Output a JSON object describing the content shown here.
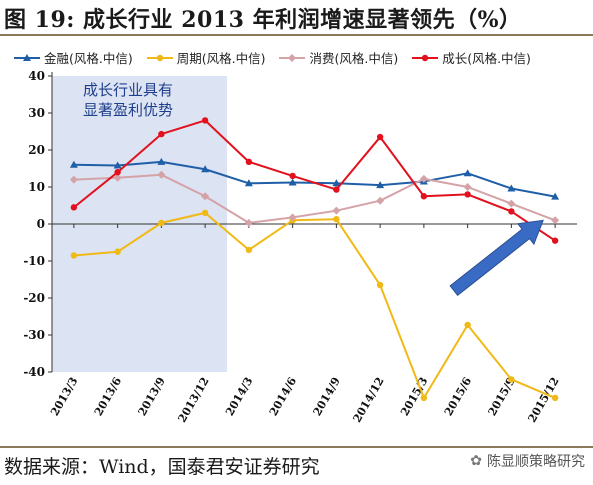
{
  "title": "图 19: 成长行业 2013 年利润增速显著领先（%）",
  "source": "数据来源：Wind，国泰君安证券研究",
  "watermark": "陈显顺策略研究",
  "watermark_icon": "wechat-icon",
  "highlight_text": [
    "成长行业具有",
    "显著盈利优势"
  ],
  "chart_data": {
    "type": "line",
    "categories": [
      "2013/3",
      "2013/6",
      "2013/9",
      "2013/12",
      "2014/3",
      "2014/6",
      "2014/9",
      "2014/12",
      "2015/3",
      "2015/6",
      "2015/9",
      "2015/12"
    ],
    "ylim": [
      -40,
      40
    ],
    "yticks": [
      -40,
      -30,
      -20,
      -10,
      0,
      10,
      20,
      30,
      40
    ],
    "grid": false,
    "legend": "top",
    "shaded_region": {
      "from": "2013/3",
      "to": "2013/12",
      "color": "#dce3f2"
    },
    "annotation_arrow": {
      "color": "#3a6bc4",
      "from": {
        "x": "2015/3",
        "y": -18
      },
      "to": {
        "x": "2015/12",
        "y": 1
      }
    },
    "series": [
      {
        "name": "金融(风格.中信)",
        "color": "#1f5fa8",
        "marker": "triangle",
        "values": [
          16.0,
          15.8,
          16.8,
          14.8,
          11.0,
          11.2,
          11.0,
          10.5,
          11.5,
          13.7,
          9.6,
          7.4
        ]
      },
      {
        "name": "周期(风格.中信)",
        "color": "#f0b915",
        "marker": "circle",
        "values": [
          -8.5,
          -7.5,
          0.3,
          3.0,
          -7.0,
          1.0,
          1.3,
          -16.5,
          -47.0,
          -27.3,
          -42.0,
          -47.0
        ]
      },
      {
        "name": "消费(风格.中信)",
        "color": "#d4a3a8",
        "marker": "diamond",
        "values": [
          12.0,
          12.5,
          13.3,
          7.5,
          0.3,
          1.8,
          3.6,
          6.3,
          12.2,
          10.0,
          5.5,
          1.0
        ]
      },
      {
        "name": "成长(风格.中信)",
        "color": "#e3101e",
        "marker": "circle",
        "values": [
          4.5,
          14.0,
          24.3,
          28.0,
          16.8,
          13.0,
          9.3,
          23.5,
          7.5,
          8.0,
          3.4,
          -4.5
        ]
      }
    ]
  }
}
